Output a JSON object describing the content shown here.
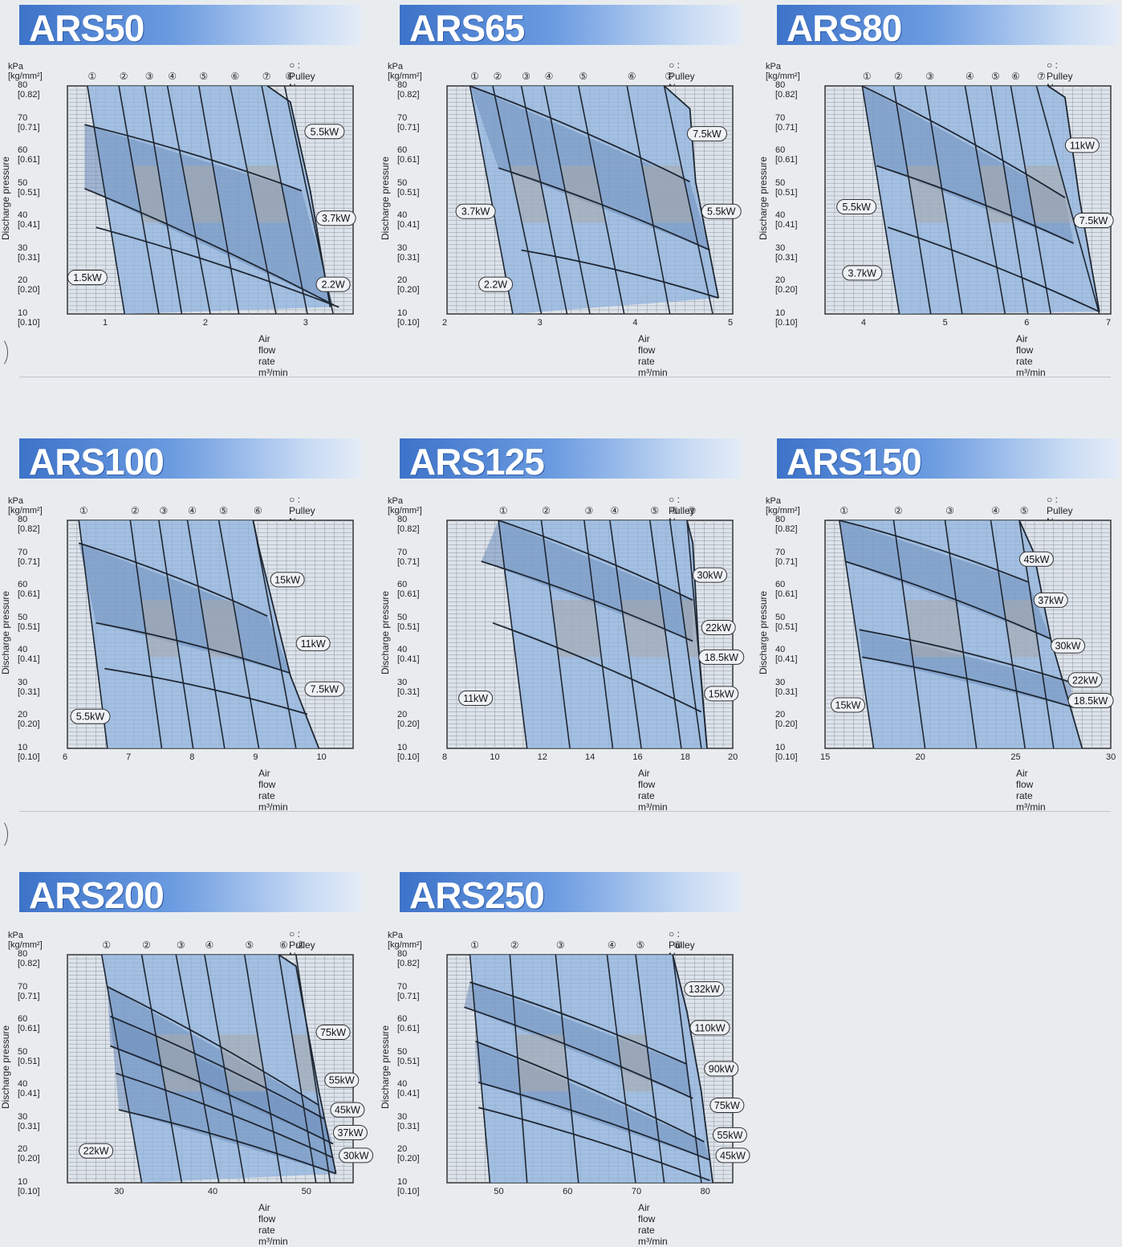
{
  "charts": [
    {
      "id": "ars50",
      "title": "ARS50",
      "unit_label": "kPa [kg/mm²]",
      "pulley_note": "○ : Pulley No.",
      "xlabel": "Air flow rate  m³/min",
      "ylabel": "Discharge pressure",
      "xticks": [
        "1",
        "2",
        "3"
      ],
      "xlim": [
        0.6,
        3.45
      ],
      "pulleys": [
        "①",
        "②",
        "③",
        "④",
        "⑤",
        "⑥",
        "⑦",
        "⑧"
      ],
      "motors": [
        "5.5kW",
        "3.7kW",
        "2.2W",
        "1.5kW"
      ]
    },
    {
      "id": "ars65",
      "title": "ARS65",
      "unit_label": "kPa [kg/mm²]",
      "pulley_note": "○ : Pulley No.",
      "xlabel": "Air flow rate  m³/min",
      "ylabel": "Discharge pressure",
      "xticks": [
        "2",
        "3",
        "4",
        "5"
      ],
      "xlim": [
        2,
        5
      ],
      "pulleys": [
        "①",
        "②",
        "③",
        "④",
        "⑤",
        "⑥",
        "⑦"
      ],
      "motors": [
        "7.5kW",
        "5.5kW",
        "3.7kW",
        "2.2W"
      ]
    },
    {
      "id": "ars80",
      "title": "ARS80",
      "unit_label": "kPa [kg/mm²]",
      "pulley_note": "○ : Pulley No.",
      "xlabel": "Air flow rate  m³/min",
      "ylabel": "Discharge pressure",
      "xticks": [
        "4",
        "5",
        "6",
        "7"
      ],
      "xlim": [
        3.5,
        7
      ],
      "pulleys": [
        "①",
        "②",
        "③",
        "④",
        "⑤",
        "⑥",
        "⑦"
      ],
      "motors": [
        "11kW",
        "7.5kW",
        "5.5kW",
        "3.7kW"
      ]
    },
    {
      "id": "ars100",
      "title": "ARS100",
      "unit_label": "kPa [kg/mm²]",
      "pulley_note": "○ : Pulley No.",
      "xlabel": "Air flow rate  m³/min",
      "ylabel": "Discharge pressure",
      "xticks": [
        "6",
        "7",
        "8",
        "9",
        "10"
      ],
      "xlim": [
        6,
        10.5
      ],
      "pulleys": [
        "①",
        "②",
        "③",
        "④",
        "⑤",
        "⑥"
      ],
      "motors": [
        "15kW",
        "11kW",
        "7.5kW",
        "5.5kW"
      ]
    },
    {
      "id": "ars125",
      "title": "ARS125",
      "unit_label": "kPa [kg/mm²]",
      "pulley_note": "○ : Pulley No.",
      "xlabel": "Air flow rate  m³/min",
      "ylabel": "Discharge pressure",
      "xticks": [
        "8",
        "10",
        "12",
        "14",
        "16",
        "18",
        "20"
      ],
      "xlim": [
        8,
        20
      ],
      "pulleys": [
        "①",
        "②",
        "③",
        "④",
        "⑤",
        "⑥",
        "⑦"
      ],
      "motors": [
        "30kW",
        "22kW",
        "18.5kW",
        "15kW",
        "11kW"
      ]
    },
    {
      "id": "ars150",
      "title": "ARS150",
      "unit_label": "kPa [kg/mm²]",
      "pulley_note": "○ : Pulley No.",
      "xlabel": "Air flow rate  m³/min",
      "ylabel": "Discharge pressure",
      "xticks": [
        "15",
        "20",
        "25",
        "30"
      ],
      "xlim": [
        15,
        30
      ],
      "pulleys": [
        "①",
        "②",
        "③",
        "④",
        "⑤"
      ],
      "motors": [
        "45kW",
        "37kW",
        "30kW",
        "22kW",
        "18.5kW",
        "15kW"
      ]
    },
    {
      "id": "ars200",
      "title": "ARS200",
      "unit_label": "kPa [kg/mm²]",
      "pulley_note": "○ : Pulley No.",
      "xlabel": "Air flow rate  m³/min",
      "ylabel": "Discharge pressure",
      "xticks": [
        "30",
        "40",
        "50"
      ],
      "xlim": [
        24.5,
        55
      ],
      "pulleys": [
        "①",
        "②",
        "③",
        "④",
        "⑤",
        "⑥",
        "⑦"
      ],
      "motors": [
        "75kW",
        "55kW",
        "45kW",
        "37kW",
        "30kW",
        "22kW"
      ]
    },
    {
      "id": "ars250",
      "title": "ARS250",
      "unit_label": "kPa [kg/mm²]",
      "pulley_note": "○ : Pulley No.",
      "xlabel": "Air flow rate  m³/min",
      "ylabel": "Discharge pressure",
      "xticks": [
        "50",
        "60",
        "70",
        "80"
      ],
      "xlim": [
        42.5,
        84
      ],
      "pulleys": [
        "①",
        "②",
        "③",
        "④",
        "⑤",
        "⑥"
      ],
      "motors": [
        "132kW",
        "110kW",
        "90kW",
        "75kW",
        "55kW",
        "45kW"
      ]
    }
  ],
  "yticks": [
    "80 [0.82]",
    "70 [0.71]",
    "60 [0.61]",
    "50 [0.51]",
    "40 [0.41]",
    "30 [0.31]",
    "20 [0.20]",
    "10 [0.10]"
  ],
  "chart_data": [
    {
      "type": "area",
      "title": "ARS50",
      "xlabel": "Air flow rate m³/min",
      "ylabel": "Discharge pressure",
      "ylim": [
        10,
        80
      ],
      "xlim": [
        0.6,
        3.45
      ],
      "series": [
        {
          "name": "5.5kW"
        },
        {
          "name": "3.7kW"
        },
        {
          "name": "2.2W"
        },
        {
          "name": "1.5kW"
        }
      ]
    },
    {
      "type": "area",
      "title": "ARS65",
      "xlabel": "Air flow rate m³/min",
      "ylabel": "Discharge pressure",
      "ylim": [
        10,
        80
      ],
      "xlim": [
        2,
        5
      ],
      "series": [
        {
          "name": "7.5kW"
        },
        {
          "name": "5.5kW"
        },
        {
          "name": "3.7kW"
        },
        {
          "name": "2.2W"
        }
      ]
    },
    {
      "type": "area",
      "title": "ARS80",
      "xlabel": "Air flow rate m³/min",
      "ylabel": "Discharge pressure",
      "ylim": [
        10,
        80
      ],
      "xlim": [
        3.5,
        7
      ],
      "series": [
        {
          "name": "11kW"
        },
        {
          "name": "7.5kW"
        },
        {
          "name": "5.5kW"
        },
        {
          "name": "3.7kW"
        }
      ]
    },
    {
      "type": "area",
      "title": "ARS100",
      "xlabel": "Air flow rate m³/min",
      "ylabel": "Discharge pressure",
      "ylim": [
        10,
        80
      ],
      "xlim": [
        6,
        10.5
      ],
      "series": [
        {
          "name": "15kW"
        },
        {
          "name": "11kW"
        },
        {
          "name": "7.5kW"
        },
        {
          "name": "5.5kW"
        }
      ]
    },
    {
      "type": "area",
      "title": "ARS125",
      "xlabel": "Air flow rate m³/min",
      "ylabel": "Discharge pressure",
      "ylim": [
        10,
        80
      ],
      "xlim": [
        8,
        20
      ],
      "series": [
        {
          "name": "30kW"
        },
        {
          "name": "22kW"
        },
        {
          "name": "18.5kW"
        },
        {
          "name": "15kW"
        },
        {
          "name": "11kW"
        }
      ]
    },
    {
      "type": "area",
      "title": "ARS150",
      "xlabel": "Air flow rate m³/min",
      "ylabel": "Discharge pressure",
      "ylim": [
        10,
        80
      ],
      "xlim": [
        15,
        30
      ],
      "series": [
        {
          "name": "45kW"
        },
        {
          "name": "37kW"
        },
        {
          "name": "30kW"
        },
        {
          "name": "22kW"
        },
        {
          "name": "18.5kW"
        },
        {
          "name": "15kW"
        }
      ]
    },
    {
      "type": "area",
      "title": "ARS200",
      "xlabel": "Air flow rate m³/min",
      "ylabel": "Discharge pressure",
      "ylim": [
        10,
        80
      ],
      "xlim": [
        24.5,
        55
      ],
      "series": [
        {
          "name": "75kW"
        },
        {
          "name": "55kW"
        },
        {
          "name": "45kW"
        },
        {
          "name": "37kW"
        },
        {
          "name": "30kW"
        },
        {
          "name": "22kW"
        }
      ]
    },
    {
      "type": "area",
      "title": "ARS250",
      "xlabel": "Air flow rate m³/min",
      "ylabel": "Discharge pressure",
      "ylim": [
        10,
        80
      ],
      "xlim": [
        42.5,
        84
      ],
      "series": [
        {
          "name": "132kW"
        },
        {
          "name": "110kW"
        },
        {
          "name": "90kW"
        },
        {
          "name": "75kW"
        },
        {
          "name": "55kW"
        },
        {
          "name": "45kW"
        }
      ]
    }
  ],
  "colors": {
    "band_blue": "#8fb3de",
    "band_dark": "#6f8fbd",
    "band_gray": "#a9a9a9",
    "plot_bg": "#dde3ea",
    "grid": "#8e969f",
    "line": "#1f2733"
  }
}
